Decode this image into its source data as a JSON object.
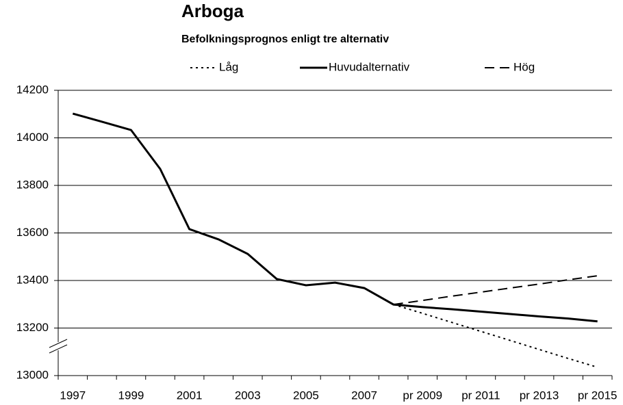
{
  "chart_data": {
    "type": "line",
    "title": "Arboga",
    "subtitle": "Befolkningsprognos enligt tre alternativ",
    "categories": [
      "1997",
      null,
      "1999",
      null,
      "2001",
      null,
      "2003",
      null,
      "2005",
      null,
      "2007",
      null,
      "pr 2009",
      null,
      "pr 2011",
      null,
      "pr 2013",
      null,
      "pr 2015"
    ],
    "series": [
      {
        "name": "Låg",
        "color": "#000000",
        "dash": "dotted",
        "values": [
          null,
          null,
          null,
          null,
          null,
          null,
          null,
          null,
          null,
          null,
          null,
          13299,
          13262,
          13224,
          13186,
          13148,
          13110,
          13072,
          13035
        ]
      },
      {
        "name": "Huvudalternativ",
        "color": "#000000",
        "dash": "solid",
        "values": [
          14102,
          14068,
          14033,
          13869,
          13616,
          13573,
          13512,
          13406,
          13380,
          13391,
          13368,
          13299,
          13288,
          13279,
          13269,
          13259,
          13249,
          13240,
          13228
        ]
      },
      {
        "name": "Hög",
        "color": "#000000",
        "dash": "dashed",
        "values": [
          null,
          null,
          null,
          null,
          null,
          null,
          null,
          null,
          null,
          null,
          null,
          13299,
          13316,
          13334,
          13351,
          13368,
          13385,
          13403,
          13420
        ]
      }
    ],
    "ylim": [
      13000,
      14200
    ],
    "yticks": [
      13000,
      13200,
      13400,
      13600,
      13800,
      14000,
      14200
    ],
    "grid": true,
    "legend": "top"
  }
}
